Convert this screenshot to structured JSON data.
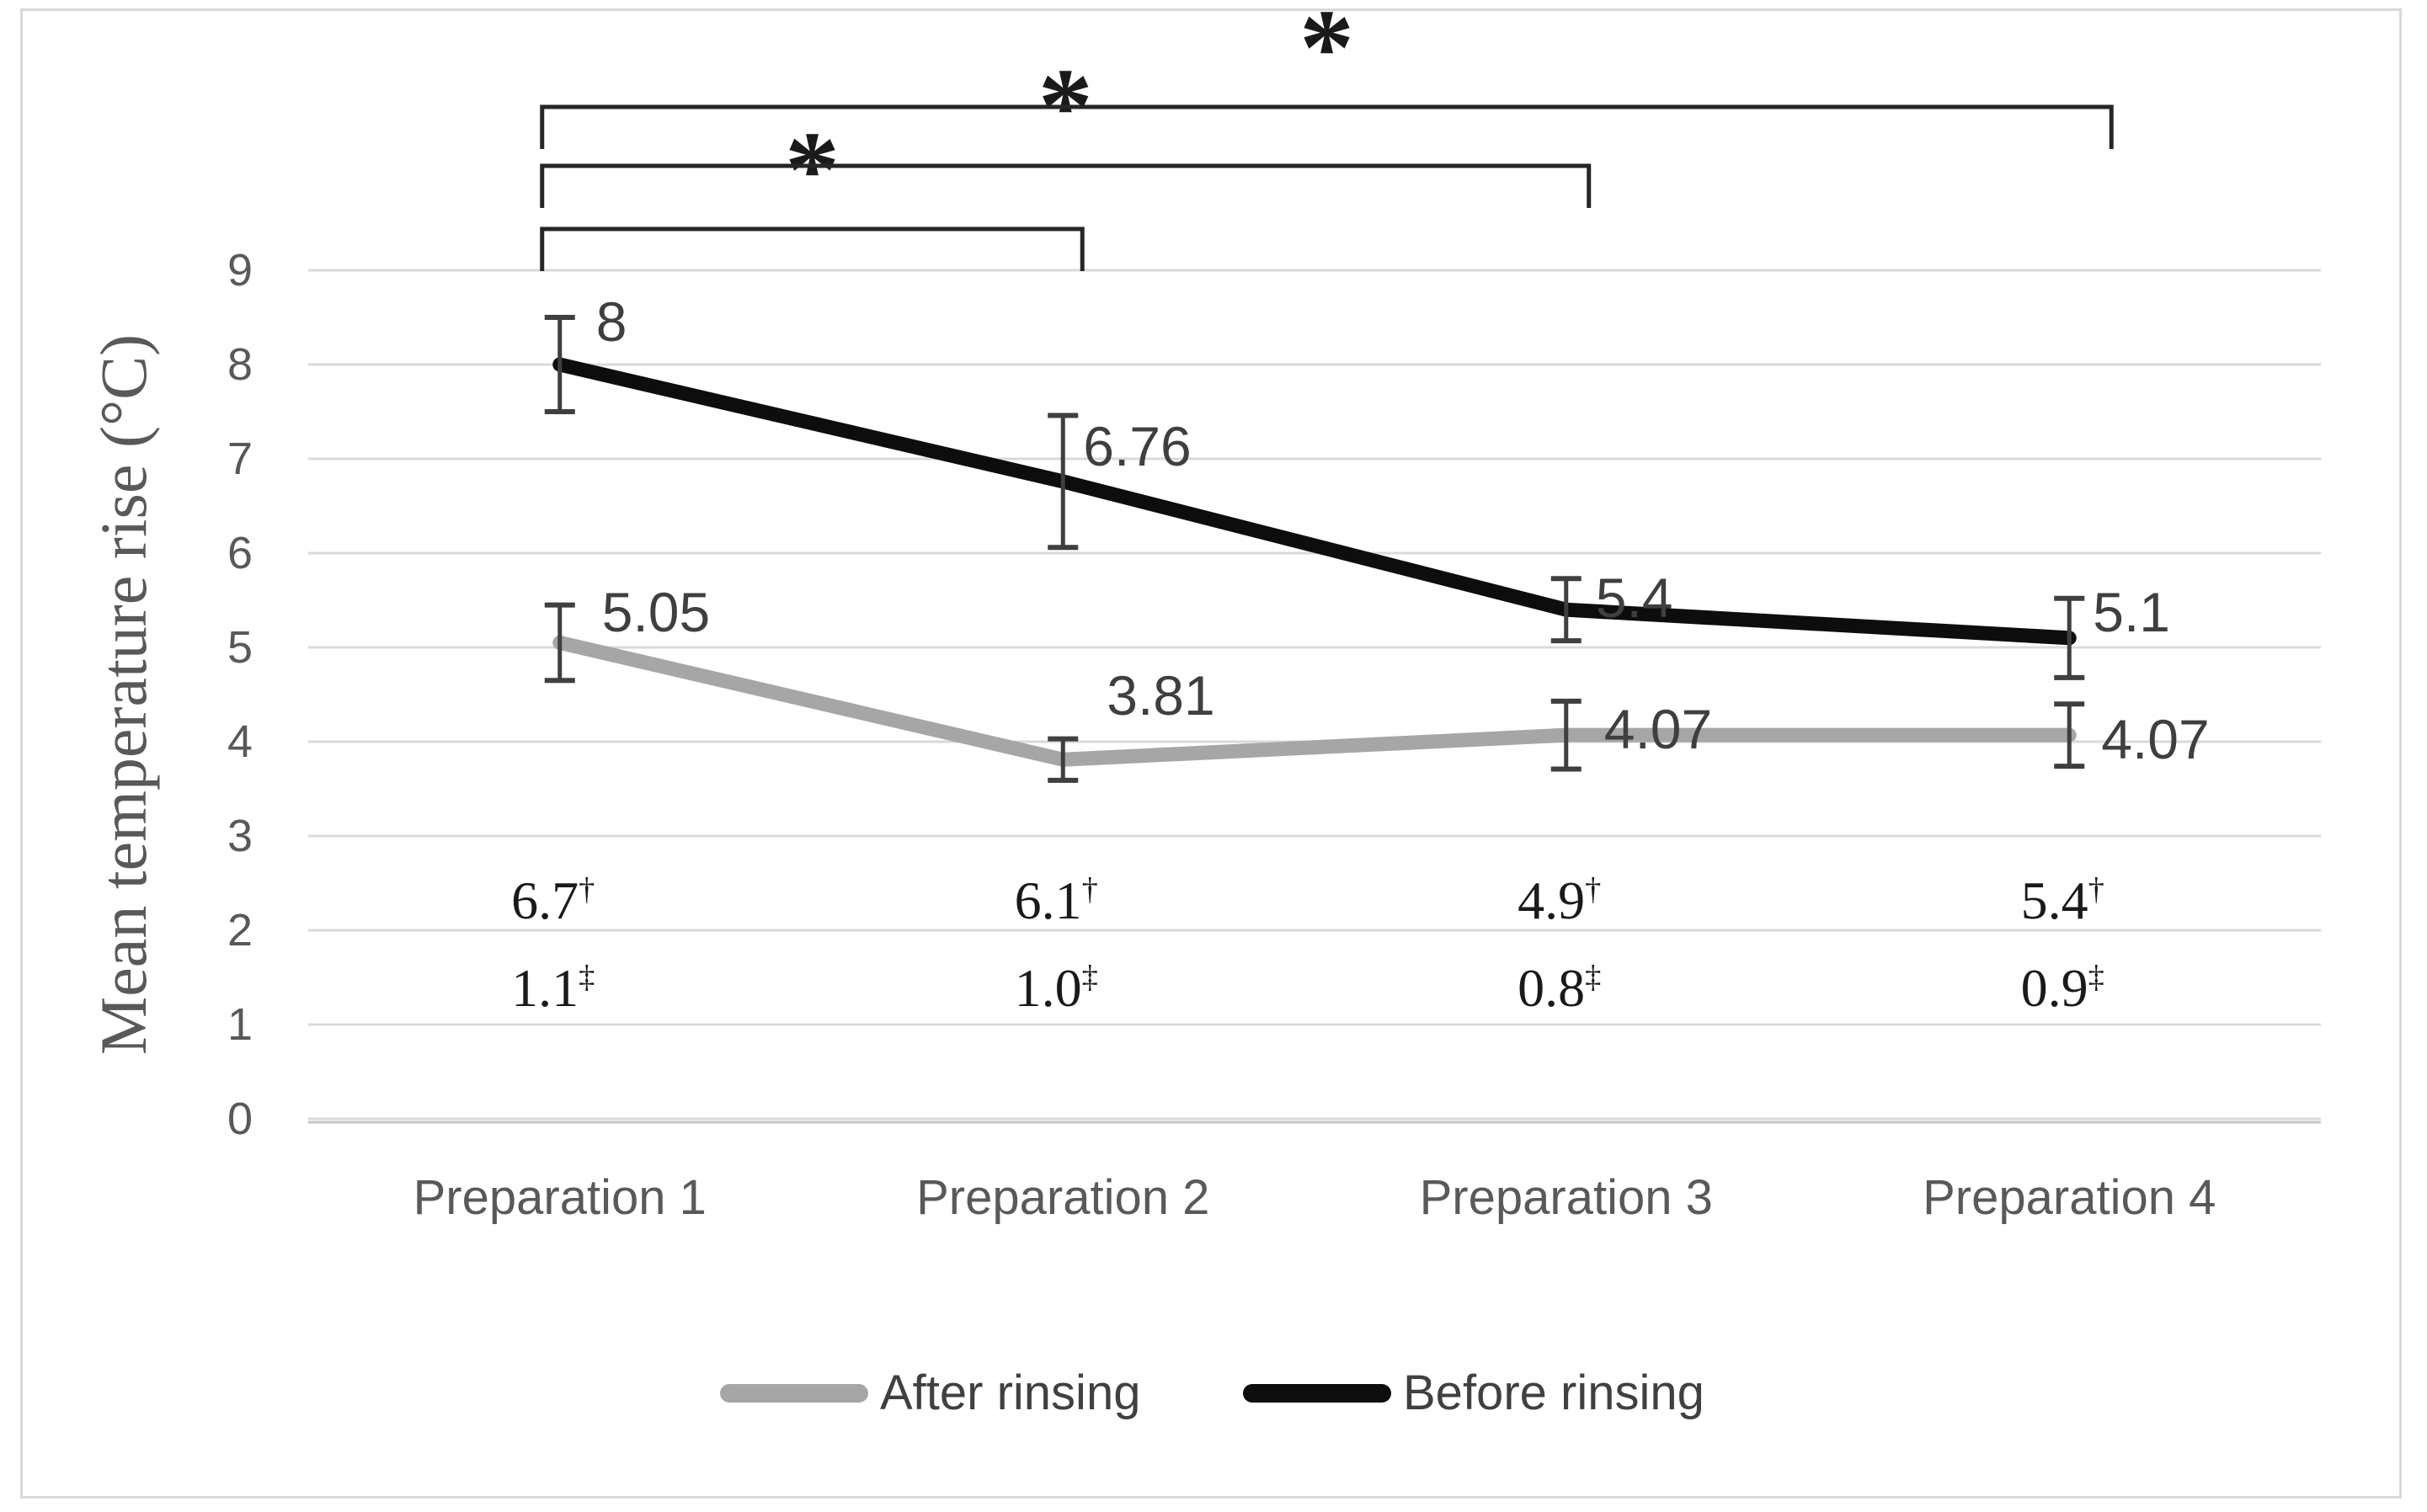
{
  "figure": {
    "background": "#ffffff",
    "border_color": "#d9d9d9"
  },
  "chart_data": {
    "type": "line",
    "title": "",
    "xlabel": "",
    "ylabel": "Mean temperature rise (°C)",
    "categories": [
      "Preparation 1",
      "Preparation 2",
      "Preparation 3",
      "Preparation 4"
    ],
    "ylim": [
      0,
      9
    ],
    "y_ticks": [
      9,
      8,
      7,
      6,
      5,
      4,
      3,
      2,
      1,
      0
    ],
    "grid": "horizontal",
    "grid_color": "#d9d9d9",
    "axis_line_color": "#c6c6c6",
    "error_bar_color": "#3f3f3f",
    "bracket_color": "#262626",
    "legend_position": "bottom",
    "series": [
      {
        "name": "After rinsing",
        "color": "#a6a6a6",
        "values": [
          5.05,
          3.81,
          4.07,
          4.07
        ],
        "labels": [
          "5.05",
          "3.81",
          "4.07",
          "4.07"
        ],
        "error": [
          0.4,
          0.22,
          0.36,
          0.33
        ],
        "label_dx": [
          50,
          52,
          45,
          38
        ],
        "label_dy": [
          8,
          -52,
          33,
          42
        ]
      },
      {
        "name": "Before rinsing",
        "color": "#0d0d0d",
        "values": [
          8,
          6.76,
          5.4,
          5.1
        ],
        "labels": [
          "8",
          "6.76",
          "5.4",
          "5.1"
        ],
        "error": [
          0.5,
          0.7,
          0.33,
          0.42
        ],
        "label_dx": [
          43,
          24,
          35,
          28
        ],
        "label_dy": [
          5,
          37,
          23,
          16
        ]
      }
    ],
    "annotations": {
      "dagger_row": [
        {
          "value": "6.7",
          "symbol": "†"
        },
        {
          "value": "6.1",
          "symbol": "†"
        },
        {
          "value": "4.9",
          "symbol": "†"
        },
        {
          "value": "5.4",
          "symbol": "†"
        }
      ],
      "double_dagger_row": [
        {
          "value": "1.1",
          "symbol": "‡"
        },
        {
          "value": "1.0",
          "symbol": "‡"
        },
        {
          "value": "0.8",
          "symbol": "‡"
        },
        {
          "value": "0.9",
          "symbol": "‡"
        }
      ]
    },
    "significance_brackets": [
      {
        "from": "Preparation 1",
        "to": "Preparation 2",
        "label": "*"
      },
      {
        "from": "Preparation 1",
        "to": "Preparation 3",
        "label": "*"
      },
      {
        "from": "Preparation 1",
        "to": "Preparation 4",
        "label": "*"
      }
    ]
  }
}
